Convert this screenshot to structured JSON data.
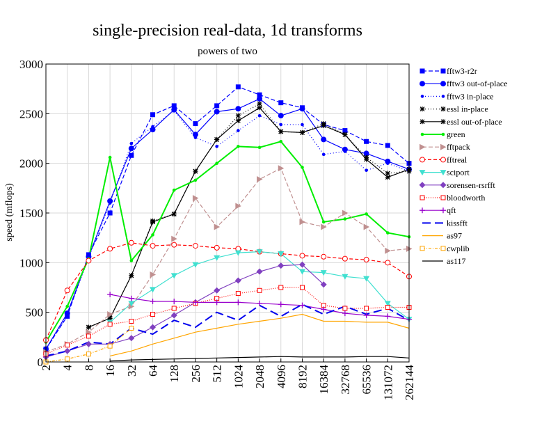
{
  "chart_data": {
    "type": "line",
    "title": "single-precision real-data, 1d transforms",
    "subtitle": "powers of two",
    "xlabel": "",
    "ylabel": "speed (mflops)",
    "ylim": [
      0,
      3000
    ],
    "yticks": [
      0,
      500,
      1000,
      1500,
      2000,
      2500,
      3000
    ],
    "categories": [
      "2",
      "4",
      "8",
      "16",
      "32",
      "64",
      "128",
      "256",
      "512",
      "1024",
      "2048",
      "4096",
      "8192",
      "16384",
      "32768",
      "65536",
      "131072",
      "262144"
    ],
    "grid": true,
    "legend_position": "right",
    "series": [
      {
        "name": "fftw3-r2r",
        "color": "#0000ff",
        "dash": "6,3",
        "marker": "square-filled",
        "values": [
          130,
          460,
          1080,
          1500,
          2080,
          2490,
          2580,
          2400,
          2580,
          2770,
          2690,
          2610,
          2560,
          2390,
          2330,
          2220,
          2180,
          2000
        ]
      },
      {
        "name": "fftw3 out-of-place",
        "color": "#0000ff",
        "dash": "",
        "marker": "circle-filled",
        "values": [
          130,
          490,
          1060,
          1620,
          2150,
          2340,
          2540,
          2290,
          2520,
          2550,
          2650,
          2480,
          2550,
          2240,
          2140,
          2100,
          2020,
          1940
        ]
      },
      {
        "name": "fftw3 in-place",
        "color": "#0000ff",
        "dash": "1,3",
        "marker": "dot",
        "values": [
          120,
          470,
          1050,
          1600,
          2200,
          2370,
          2530,
          2260,
          2170,
          2330,
          2480,
          2390,
          2390,
          2090,
          2120,
          1930,
          2000,
          1920
        ]
      },
      {
        "name": "essl in-place",
        "color": "#000000",
        "dash": "1,3",
        "marker": "star",
        "values": [
          null,
          null,
          350,
          440,
          870,
          1420,
          1490,
          1920,
          2240,
          2480,
          2600,
          2320,
          2310,
          2400,
          2290,
          2060,
          1900,
          1920
        ]
      },
      {
        "name": "essl out-of-place",
        "color": "#000000",
        "dash": "",
        "marker": "star",
        "values": [
          null,
          null,
          350,
          440,
          870,
          1410,
          1490,
          1920,
          2240,
          2430,
          2560,
          2320,
          2310,
          2380,
          2290,
          2040,
          1860,
          1940
        ]
      },
      {
        "name": "green",
        "color": "#00ee00",
        "dash": "",
        "marker": "dot",
        "values": [
          200,
          560,
          1040,
          2060,
          1020,
          1280,
          1730,
          1830,
          2000,
          2170,
          2160,
          2220,
          1960,
          1410,
          1440,
          1490,
          1300,
          1260
        ]
      },
      {
        "name": "fftpack",
        "color": "#c09090",
        "dash": "6,3",
        "marker": "triangle-right",
        "values": [
          100,
          180,
          300,
          480,
          560,
          880,
          1240,
          1650,
          1360,
          1570,
          1840,
          1950,
          1410,
          1360,
          1500,
          1360,
          1120,
          1140
        ]
      },
      {
        "name": "fftreal",
        "color": "#ff0000",
        "dash": "5,3",
        "marker": "circle-open",
        "values": [
          220,
          720,
          1020,
          1140,
          1200,
          1170,
          1180,
          1170,
          1150,
          1140,
          1110,
          1090,
          1070,
          1060,
          1040,
          1030,
          1000,
          860
        ]
      },
      {
        "name": "sciport",
        "color": "#40e0d0",
        "dash": "",
        "marker": "triangle-down",
        "values": [
          null,
          null,
          null,
          400,
          590,
          730,
          870,
          980,
          1050,
          1100,
          1110,
          1090,
          910,
          900,
          860,
          840,
          590,
          430
        ]
      },
      {
        "name": "sorensen-rsrfft",
        "color": "#8040c0",
        "dash": "",
        "marker": "diamond-filled",
        "values": [
          50,
          110,
          180,
          180,
          240,
          350,
          470,
          600,
          720,
          820,
          910,
          970,
          980,
          780,
          null,
          null,
          null,
          null
        ]
      },
      {
        "name": "bloodworth",
        "color": "#ff0000",
        "dash": "1,2",
        "marker": "square-open",
        "values": [
          80,
          170,
          260,
          380,
          410,
          480,
          540,
          590,
          640,
          690,
          720,
          750,
          750,
          570,
          540,
          540,
          550,
          550
        ]
      },
      {
        "name": "qft",
        "color": "#9900cc",
        "dash": "",
        "marker": "plus",
        "values": [
          null,
          null,
          null,
          680,
          640,
          610,
          610,
          600,
          600,
          600,
          590,
          580,
          570,
          530,
          490,
          470,
          460,
          430
        ]
      },
      {
        "name": "kissfft",
        "color": "#0000ee",
        "dash": "12,6",
        "marker": "none",
        "values": [
          60,
          110,
          200,
          180,
          340,
          280,
          420,
          350,
          500,
          420,
          570,
          460,
          580,
          480,
          560,
          480,
          540,
          420
        ]
      },
      {
        "name": "as97",
        "color": "#ffa500",
        "dash": "",
        "marker": "none",
        "values": [
          null,
          null,
          null,
          60,
          110,
          180,
          240,
          300,
          340,
          380,
          410,
          440,
          480,
          410,
          410,
          400,
          400,
          340
        ]
      },
      {
        "name": "cwplib",
        "color": "#ffa500",
        "dash": "4,2,1,2",
        "marker": "square-open",
        "values": [
          0,
          30,
          80,
          160,
          340,
          null,
          null,
          null,
          null,
          null,
          null,
          null,
          null,
          null,
          null,
          null,
          null,
          null
        ]
      },
      {
        "name": "as117",
        "color": "#000000",
        "dash": "",
        "marker": "none",
        "values": [
          null,
          null,
          null,
          10,
          20,
          25,
          30,
          35,
          40,
          45,
          50,
          55,
          50,
          50,
          50,
          55,
          55,
          40
        ]
      }
    ]
  }
}
